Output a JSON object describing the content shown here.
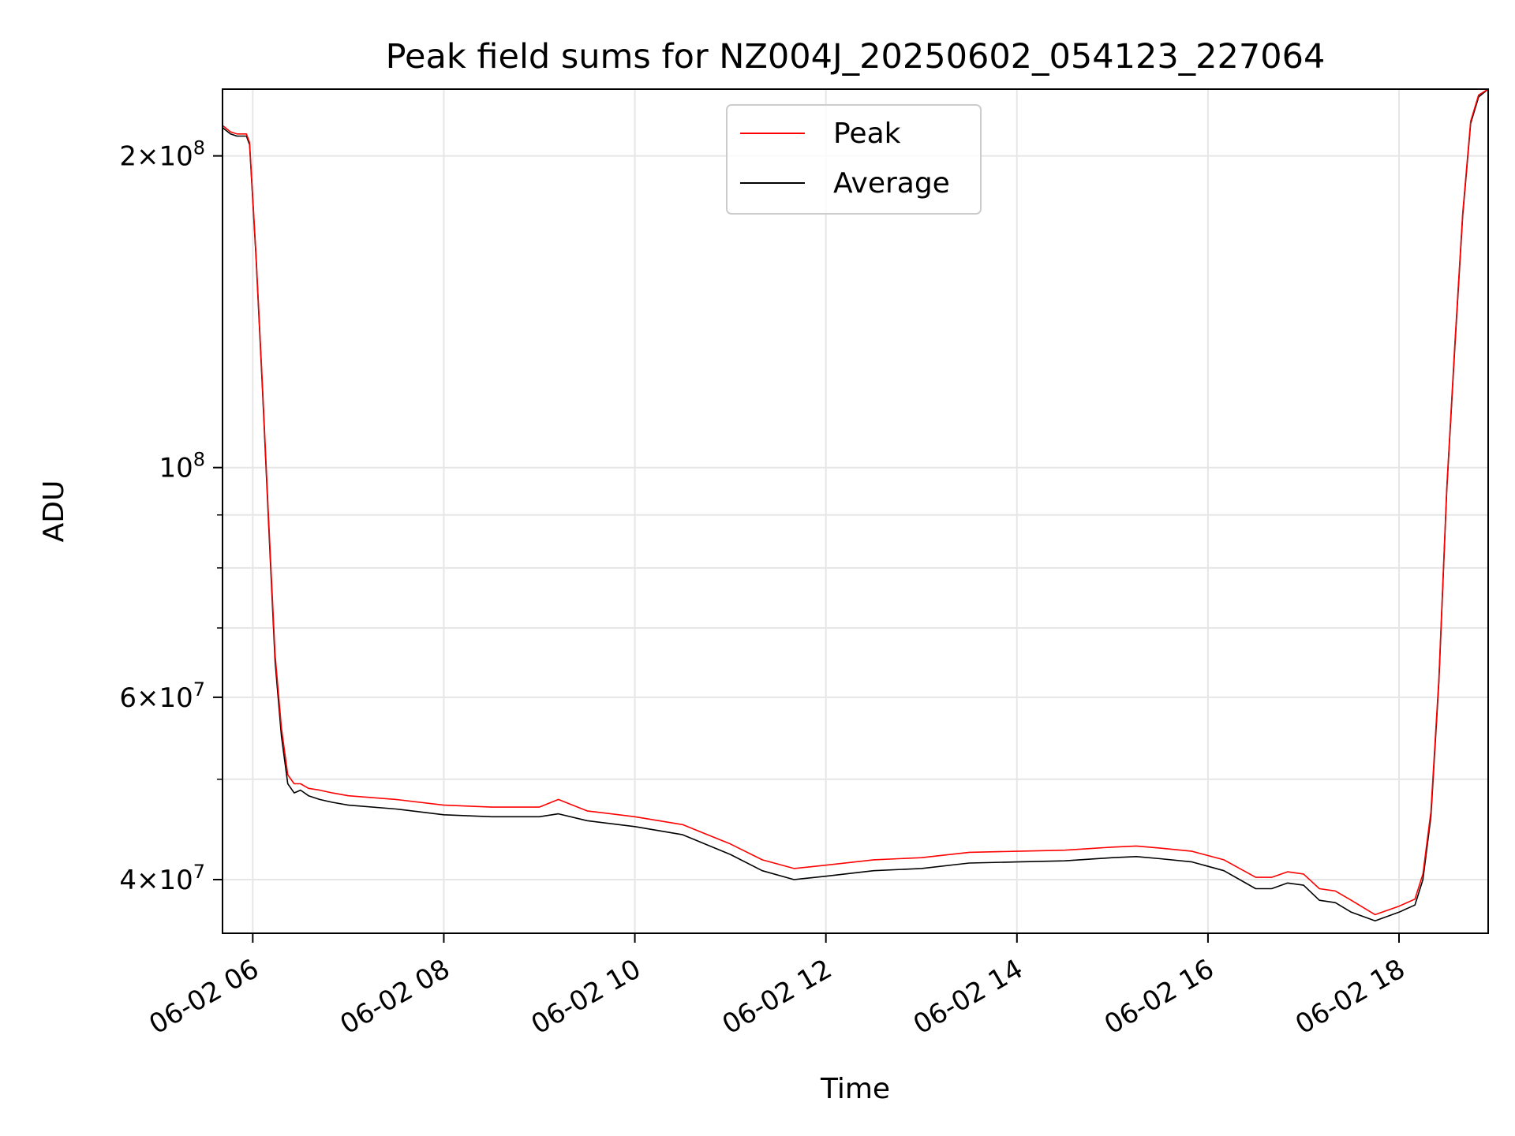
{
  "chart_data": {
    "type": "line",
    "title": "Peak field sums for NZ004J_20250602_054123_227064",
    "xlabel": "Time",
    "ylabel": "ADU",
    "x_scale": "time",
    "y_scale": "log",
    "xlim": [
      "2025-06-02 05:41",
      "2025-06-02 18:56"
    ],
    "ylim": [
      35500000,
      232000000
    ],
    "grid": true,
    "legend": {
      "placement": "upper center",
      "entries": [
        {
          "label": "Peak",
          "color": "#ff0000"
        },
        {
          "label": "Average",
          "color": "#000000"
        }
      ]
    },
    "x_ticks": [
      {
        "value": "2025-06-02 06:00",
        "label": "06-02 06"
      },
      {
        "value": "2025-06-02 08:00",
        "label": "06-02 08"
      },
      {
        "value": "2025-06-02 10:00",
        "label": "06-02 10"
      },
      {
        "value": "2025-06-02 12:00",
        "label": "06-02 12"
      },
      {
        "value": "2025-06-02 14:00",
        "label": "06-02 14"
      },
      {
        "value": "2025-06-02 16:00",
        "label": "06-02 16"
      },
      {
        "value": "2025-06-02 18:00",
        "label": "06-02 18"
      }
    ],
    "y_major_ticks": [
      {
        "value": 40000000,
        "mantissa": "4",
        "exponent": "7"
      },
      {
        "value": 60000000,
        "mantissa": "6",
        "exponent": "7"
      },
      {
        "value": 100000000,
        "mantissa": "",
        "exponent": "8"
      },
      {
        "value": 200000000,
        "mantissa": "2",
        "exponent": "8"
      }
    ],
    "y_minor_ticks": [
      50000000,
      70000000,
      80000000,
      90000000
    ],
    "series": [
      {
        "name": "Average",
        "color": "#000000",
        "x": [
          "2025-06-02 05:41",
          "2025-06-02 05:46",
          "2025-06-02 05:50",
          "2025-06-02 05:56",
          "2025-06-02 05:58",
          "2025-06-02 06:02",
          "2025-06-02 06:06",
          "2025-06-02 06:10",
          "2025-06-02 06:14",
          "2025-06-02 06:18",
          "2025-06-02 06:22",
          "2025-06-02 06:26",
          "2025-06-02 06:30",
          "2025-06-02 06:35",
          "2025-06-02 06:42",
          "2025-06-02 06:50",
          "2025-06-02 07:00",
          "2025-06-02 07:30",
          "2025-06-02 08:00",
          "2025-06-02 08:30",
          "2025-06-02 09:00",
          "2025-06-02 09:12",
          "2025-06-02 09:30",
          "2025-06-02 10:00",
          "2025-06-02 10:30",
          "2025-06-02 11:00",
          "2025-06-02 11:20",
          "2025-06-02 11:40",
          "2025-06-02 12:00",
          "2025-06-02 12:30",
          "2025-06-02 13:00",
          "2025-06-02 13:30",
          "2025-06-02 14:00",
          "2025-06-02 14:30",
          "2025-06-02 15:00",
          "2025-06-02 15:15",
          "2025-06-02 15:30",
          "2025-06-02 15:50",
          "2025-06-02 16:10",
          "2025-06-02 16:30",
          "2025-06-02 16:40",
          "2025-06-02 16:50",
          "2025-06-02 17:00",
          "2025-06-02 17:10",
          "2025-06-02 17:20",
          "2025-06-02 17:30",
          "2025-06-02 17:45",
          "2025-06-02 18:00",
          "2025-06-02 18:10",
          "2025-06-02 18:15",
          "2025-06-02 18:20",
          "2025-06-02 18:25",
          "2025-06-02 18:30",
          "2025-06-02 18:35",
          "2025-06-02 18:40",
          "2025-06-02 18:45",
          "2025-06-02 18:50",
          "2025-06-02 18:56"
        ],
        "values": [
          213000000,
          210000000,
          209000000,
          209000000,
          205000000,
          160000000,
          120000000,
          88000000,
          65000000,
          55000000,
          49500000,
          48500000,
          48800000,
          48200000,
          47800000,
          47500000,
          47200000,
          46800000,
          46200000,
          46000000,
          46000000,
          46300000,
          45600000,
          45000000,
          44200000,
          42300000,
          40800000,
          40000000,
          40300000,
          40800000,
          41000000,
          41500000,
          41600000,
          41700000,
          42000000,
          42100000,
          41900000,
          41600000,
          40800000,
          39200000,
          39200000,
          39700000,
          39500000,
          38200000,
          38000000,
          37200000,
          36500000,
          37200000,
          37800000,
          40000000,
          46000000,
          62000000,
          95000000,
          130000000,
          175000000,
          215000000,
          228000000,
          232000000
        ]
      },
      {
        "name": "Peak",
        "color": "#ff0000",
        "x": [
          "2025-06-02 05:41",
          "2025-06-02 05:46",
          "2025-06-02 05:50",
          "2025-06-02 05:56",
          "2025-06-02 05:58",
          "2025-06-02 06:02",
          "2025-06-02 06:06",
          "2025-06-02 06:10",
          "2025-06-02 06:14",
          "2025-06-02 06:18",
          "2025-06-02 06:22",
          "2025-06-02 06:26",
          "2025-06-02 06:30",
          "2025-06-02 06:35",
          "2025-06-02 06:42",
          "2025-06-02 06:50",
          "2025-06-02 07:00",
          "2025-06-02 07:30",
          "2025-06-02 08:00",
          "2025-06-02 08:30",
          "2025-06-02 09:00",
          "2025-06-02 09:12",
          "2025-06-02 09:30",
          "2025-06-02 10:00",
          "2025-06-02 10:30",
          "2025-06-02 11:00",
          "2025-06-02 11:20",
          "2025-06-02 11:40",
          "2025-06-02 12:00",
          "2025-06-02 12:30",
          "2025-06-02 13:00",
          "2025-06-02 13:30",
          "2025-06-02 14:00",
          "2025-06-02 14:30",
          "2025-06-02 15:00",
          "2025-06-02 15:15",
          "2025-06-02 15:30",
          "2025-06-02 15:50",
          "2025-06-02 16:10",
          "2025-06-02 16:30",
          "2025-06-02 16:40",
          "2025-06-02 16:50",
          "2025-06-02 17:00",
          "2025-06-02 17:10",
          "2025-06-02 17:20",
          "2025-06-02 17:30",
          "2025-06-02 17:45",
          "2025-06-02 18:00",
          "2025-06-02 18:10",
          "2025-06-02 18:15",
          "2025-06-02 18:20",
          "2025-06-02 18:25",
          "2025-06-02 18:30",
          "2025-06-02 18:35",
          "2025-06-02 18:40",
          "2025-06-02 18:45",
          "2025-06-02 18:50",
          "2025-06-02 18:56"
        ],
        "values": [
          214000000,
          211000000,
          210000000,
          210000000,
          206000000,
          161000000,
          121000000,
          89000000,
          66000000,
          56000000,
          50500000,
          49500000,
          49500000,
          49000000,
          48800000,
          48500000,
          48200000,
          47800000,
          47200000,
          47000000,
          47000000,
          47800000,
          46600000,
          46000000,
          45200000,
          43300000,
          41800000,
          41000000,
          41300000,
          41800000,
          42000000,
          42500000,
          42600000,
          42700000,
          43000000,
          43100000,
          42900000,
          42600000,
          41800000,
          40200000,
          40200000,
          40700000,
          40500000,
          39200000,
          39000000,
          38200000,
          37000000,
          37700000,
          38300000,
          40500000,
          46500000,
          62500000,
          95500000,
          131000000,
          176000000,
          216000000,
          229000000,
          232000000
        ]
      }
    ]
  }
}
